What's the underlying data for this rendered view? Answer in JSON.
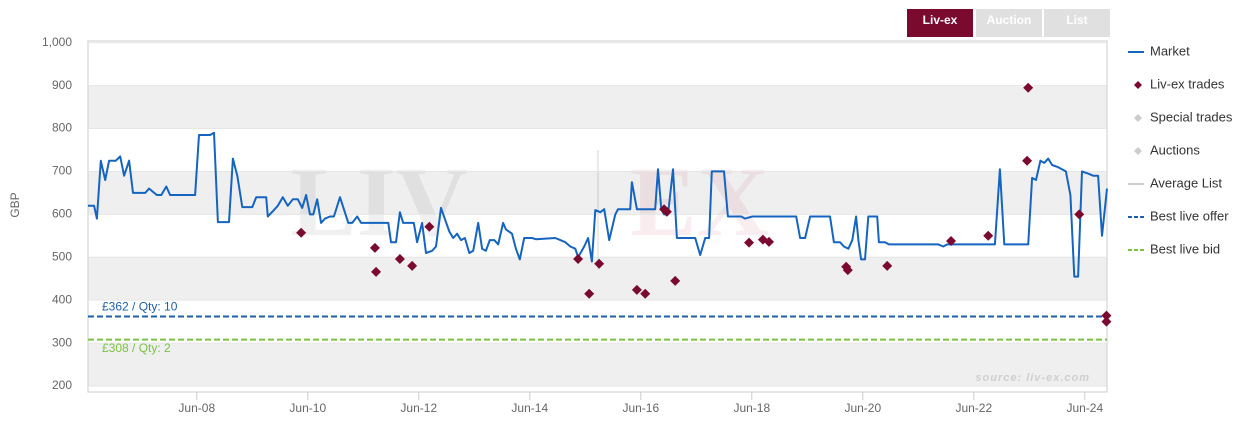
{
  "chart_data": {
    "type": "line",
    "y_label": "GBP",
    "source": "source: liv-ex.com",
    "watermark": [
      "LIV",
      "EX"
    ],
    "buttons": [
      {
        "label": "Liv-ex",
        "active": true
      },
      {
        "label": "Auction",
        "active": false
      },
      {
        "label": "List",
        "active": false
      }
    ],
    "xlim": [
      2006.46,
      2024.82
    ],
    "xticks": [
      {
        "value": 2008.42,
        "label": "Jun-08"
      },
      {
        "value": 2010.42,
        "label": "Jun-10"
      },
      {
        "value": 2012.42,
        "label": "Jun-12"
      },
      {
        "value": 2014.42,
        "label": "Jun-14"
      },
      {
        "value": 2016.42,
        "label": "Jun-16"
      },
      {
        "value": 2018.42,
        "label": "Jun-18"
      },
      {
        "value": 2020.42,
        "label": "Jun-20"
      },
      {
        "value": 2022.42,
        "label": "Jun-22"
      },
      {
        "value": 2024.42,
        "label": "Jun-24"
      }
    ],
    "ylim": [
      186,
      1004
    ],
    "yticks": [
      200,
      300,
      400,
      500,
      600,
      700,
      800,
      900,
      {
        "value": 1000,
        "label": "1,000"
      }
    ],
    "plot_bands": true,
    "series": [
      {
        "name": "Market",
        "kind": "line",
        "color": "#1565c0",
        "x": [
          2006.46,
          2006.57,
          2006.62,
          2006.69,
          2006.77,
          2006.84,
          2006.96,
          2007.04,
          2007.11,
          2007.2,
          2007.27,
          2007.49,
          2007.56,
          2007.7,
          2007.78,
          2007.87,
          2007.94,
          2008.39,
          2008.46,
          2008.66,
          2008.73,
          2008.8,
          2009.0,
          2009.07,
          2009.15,
          2009.24,
          2009.42,
          2009.49,
          2009.67,
          2009.7,
          2009.81,
          2009.88,
          2009.97,
          2010.06,
          2010.15,
          2010.24,
          2010.32,
          2010.39,
          2010.46,
          2010.52,
          2010.59,
          2010.66,
          2010.73,
          2010.82,
          2010.89,
          2011.0,
          2011.15,
          2011.22,
          2011.31,
          2011.38,
          2011.87,
          2011.92,
          2012.01,
          2012.08,
          2012.14,
          2012.33,
          2012.39,
          2012.48,
          2012.55,
          2012.66,
          2012.73,
          2012.82,
          2012.97,
          2013.04,
          2013.11,
          2013.18,
          2013.25,
          2013.33,
          2013.4,
          2013.49,
          2013.56,
          2013.63,
          2013.7,
          2013.78,
          2013.85,
          2013.94,
          2013.99,
          2014.1,
          2014.17,
          2014.24,
          2014.32,
          2014.39,
          2014.46,
          2014.53,
          2014.88,
          2014.97,
          2015.06,
          2015.15,
          2015.24,
          2015.29,
          2015.4,
          2015.47,
          2015.54,
          2015.6,
          2015.69,
          2015.76,
          2015.85,
          2015.96,
          2016.01,
          2016.23,
          2016.26,
          2016.35,
          2016.68,
          2016.73,
          2016.79,
          2016.84,
          2016.91,
          2017.0,
          2017.07,
          2017.4,
          2017.49,
          2017.58,
          2017.65,
          2017.7,
          2017.92,
          2017.99,
          2018.23,
          2018.3,
          2018.43,
          2019.22,
          2019.29,
          2019.38,
          2019.47,
          2019.83,
          2019.9,
          2020.01,
          2020.08,
          2020.16,
          2020.23,
          2020.3,
          2020.34,
          2020.39,
          2020.46,
          2020.52,
          2020.68,
          2020.71,
          2020.82,
          2020.89,
          2021.78,
          2021.87,
          2021.94,
          2022.12,
          2022.8,
          2022.89,
          2022.97,
          2023.4,
          2023.47,
          2023.54,
          2023.62,
          2023.69,
          2023.76,
          2023.83,
          2023.94,
          2024.08,
          2024.16,
          2024.23,
          2024.3,
          2024.37,
          2024.48,
          2024.57,
          2024.66,
          2024.73,
          2024.82
        ],
        "values": [
          620,
          620,
          590,
          725,
          680,
          725,
          725,
          735,
          690,
          725,
          650,
          650,
          660,
          645,
          645,
          665,
          645,
          645,
          785,
          785,
          790,
          582,
          582,
          730,
          690,
          617,
          617,
          640,
          640,
          595,
          610,
          620,
          640,
          620,
          635,
          635,
          615,
          645,
          600,
          600,
          635,
          580,
          590,
          595,
          595,
          640,
          580,
          580,
          595,
          580,
          580,
          535,
          535,
          605,
          580,
          580,
          535,
          580,
          510,
          515,
          525,
          615,
          560,
          545,
          555,
          540,
          545,
          510,
          515,
          580,
          520,
          515,
          540,
          540,
          530,
          580,
          565,
          555,
          520,
          495,
          545,
          545,
          545,
          542,
          545,
          540,
          535,
          525,
          520,
          500,
          525,
          545,
          490,
          610,
          605,
          612,
          540,
          600,
          612,
          612,
          675,
          612,
          612,
          705,
          612,
          600,
          600,
          705,
          545,
          545,
          505,
          545,
          545,
          700,
          700,
          595,
          595,
          590,
          595,
          595,
          545,
          545,
          595,
          595,
          535,
          535,
          525,
          520,
          540,
          595,
          540,
          495,
          495,
          595,
          595,
          535,
          535,
          530,
          530,
          525,
          530,
          530,
          530,
          705,
          530,
          530,
          685,
          680,
          725,
          720,
          730,
          715,
          710,
          700,
          645,
          455,
          455,
          700,
          695,
          690,
          690,
          550,
          660
        ]
      },
      {
        "name": "Liv-ex trades",
        "kind": "marker",
        "color": "#7b0a2f",
        "x": [
          2010.3,
          2011.63,
          2011.65,
          2012.08,
          2012.3,
          2012.61,
          2015.29,
          2015.49,
          2015.67,
          2016.35,
          2016.5,
          2016.84,
          2016.89,
          2017.04,
          2018.37,
          2018.62,
          2018.73,
          2020.12,
          2020.15,
          2020.86,
          2022.01,
          2022.68,
          2023.4,
          2023.38,
          2024.32,
          2024.81,
          2024.81
        ],
        "values": [
          557,
          522,
          466,
          496,
          480,
          571,
          496,
          415,
          485,
          424,
          415,
          612,
          606,
          445,
          534,
          541,
          536,
          478,
          470,
          480,
          538,
          550,
          895,
          725,
          600,
          364,
          350
        ]
      },
      {
        "name": "Special trades",
        "kind": "marker",
        "color": "#cccccc",
        "x": [],
        "values": []
      },
      {
        "name": "Auctions",
        "kind": "marker",
        "color": "#cccccc",
        "x": [],
        "values": []
      },
      {
        "name": "Average List",
        "kind": "line",
        "color": "#cccccc",
        "x": [],
        "values": []
      }
    ],
    "best_offer": {
      "name": "Best live offer",
      "value": 362,
      "label": "£362 / Qty: 10",
      "color": "#1f5fa8"
    },
    "best_bid": {
      "name": "Best live bid",
      "value": 308,
      "label": "£308 / Qty: 2",
      "color": "#7cc242"
    }
  }
}
